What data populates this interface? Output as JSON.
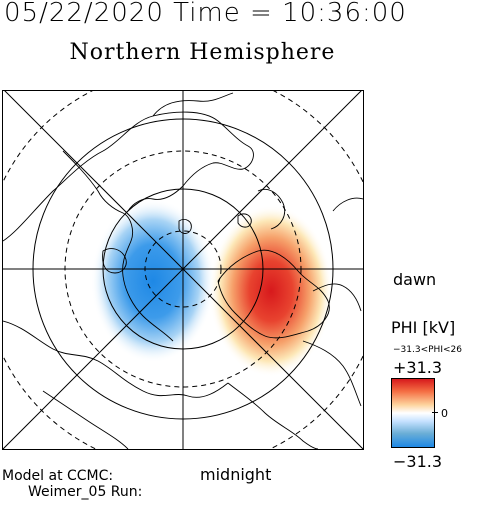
{
  "header": {
    "datetime": "05/22/2020 Time = 10:36:00",
    "hemisphere": "Northern Hemisphere"
  },
  "labels": {
    "dawn": "dawn",
    "midnight": "midnight",
    "model_line1": "Model at CCMC:",
    "model_line2": "Weimer_05 Run:"
  },
  "colorbar": {
    "title": "PHI [kV]",
    "range_text": "−31.3<PHI<26",
    "max_label": "+31.3",
    "zero_label": "0",
    "min_label": "−31.3",
    "colors": {
      "positive": "#d7191c",
      "neutral": "#ffffff",
      "negative": "#1e88e5"
    }
  },
  "map": {
    "projection": "polar stereographic, north pole centered",
    "dusk_cell": {
      "sign": "negative",
      "color": "#1e88e5"
    },
    "dawn_cell": {
      "sign": "positive",
      "color": "#d7191c"
    }
  }
}
